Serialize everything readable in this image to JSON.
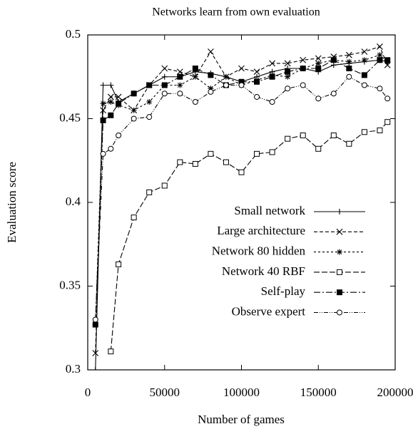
{
  "chart_data": {
    "type": "line",
    "title": "Networks learn from own evaluation",
    "xlabel": "Number of games",
    "ylabel": "Evaluation score",
    "x": [
      5000,
      10000,
      15000,
      20000,
      30000,
      40000,
      50000,
      60000,
      70000,
      80000,
      90000,
      100000,
      110000,
      120000,
      130000,
      140000,
      150000,
      160000,
      170000,
      180000,
      190000,
      195000
    ],
    "series": [
      {
        "name": "Small network",
        "color": "#000000",
        "marker": "plus",
        "values": [
          0.3,
          0.47,
          0.47,
          0.46,
          0.465,
          0.47,
          0.475,
          0.475,
          0.478,
          0.477,
          0.475,
          0.472,
          0.475,
          0.478,
          0.48,
          0.48,
          0.478,
          0.482,
          0.483,
          0.484,
          0.485,
          0.484
        ]
      },
      {
        "name": "Large architecture",
        "color": "#000000",
        "marker": "cross",
        "values": [
          0.31,
          0.455,
          0.463,
          0.463,
          0.455,
          0.47,
          0.48,
          0.478,
          0.475,
          0.49,
          0.475,
          0.48,
          0.478,
          0.483,
          0.483,
          0.485,
          0.486,
          0.487,
          0.488,
          0.49,
          0.493,
          0.482
        ]
      },
      {
        "name": "Network 80 hidden",
        "color": "#000000",
        "marker": "star",
        "values": [
          0.327,
          0.459,
          0.46,
          0.458,
          0.455,
          0.46,
          0.47,
          0.47,
          0.475,
          0.468,
          0.475,
          0.47,
          0.473,
          0.476,
          0.475,
          0.48,
          0.483,
          0.485,
          0.484,
          0.485,
          0.488,
          0.484
        ]
      },
      {
        "name": "Network 40 RBF",
        "color": "#000000",
        "marker": "square-open",
        "values": [
          null,
          null,
          0.311,
          0.363,
          0.391,
          0.406,
          0.41,
          0.424,
          0.423,
          0.429,
          0.424,
          0.418,
          0.429,
          0.43,
          0.438,
          0.44,
          0.432,
          0.44,
          0.435,
          0.442,
          0.443,
          0.448
        ]
      },
      {
        "name": "Self-play",
        "color": "#000000",
        "marker": "square-filled",
        "values": [
          0.327,
          0.449,
          0.452,
          0.459,
          0.465,
          0.47,
          0.47,
          0.475,
          0.48,
          0.476,
          0.47,
          0.472,
          0.472,
          0.475,
          0.478,
          0.48,
          0.48,
          0.485,
          0.48,
          0.476,
          0.485,
          0.485
        ]
      },
      {
        "name": "Observe expert",
        "color": "#000000",
        "marker": "circle-open",
        "values": [
          0.33,
          0.429,
          0.432,
          0.44,
          0.45,
          0.451,
          0.465,
          0.465,
          0.46,
          0.466,
          0.47,
          0.47,
          0.463,
          0.46,
          0.468,
          0.47,
          0.462,
          0.465,
          0.475,
          0.47,
          0.468,
          0.462
        ]
      }
    ],
    "xlim": [
      0,
      200000
    ],
    "xticks": [
      0,
      50000,
      100000,
      150000,
      200000
    ],
    "ylim": [
      0.3,
      0.5
    ],
    "yticks": [
      0.3,
      0.35,
      0.4,
      0.45,
      0.5
    ],
    "grid": false,
    "legend": "lower right"
  }
}
